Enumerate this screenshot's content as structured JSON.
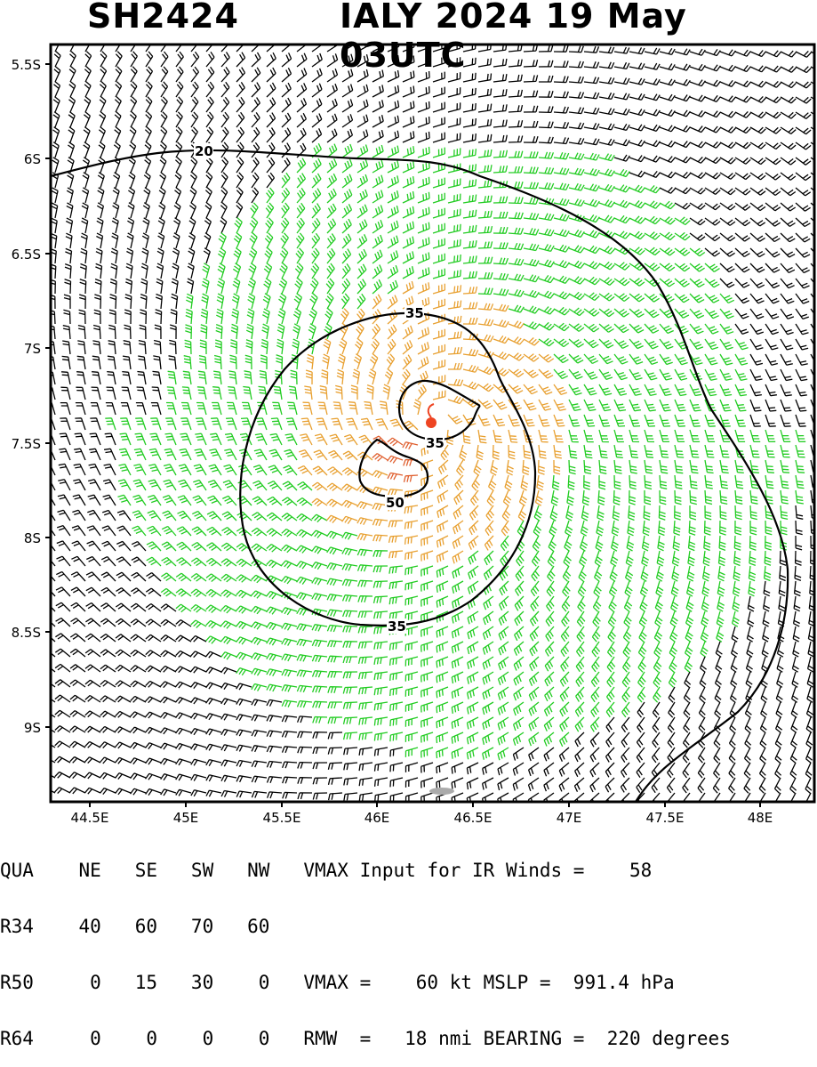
{
  "header": {
    "storm_id": "SH2424",
    "title": "IALY 2024 19 May 03UTC"
  },
  "map": {
    "lon_labels": [
      "44.5E",
      "45E",
      "45.5E",
      "46E",
      "46.5E",
      "47E",
      "47.5E",
      "48E"
    ],
    "lat_labels": [
      "5.5S",
      "6S",
      "6.5S",
      "7S",
      "7.5S",
      "8S",
      "8.5S",
      "9S"
    ],
    "contour_labels": {
      "c20": "20",
      "c35_top": "35",
      "c35_inner": "35",
      "c35_bottom": "35",
      "c50": "50"
    },
    "colors": {
      "barbs_low": "#000000",
      "barbs_gale": "#22cc22",
      "barbs_storm": "#e8a030",
      "barbs_core": "#e06030",
      "center_marker": "#ee4422",
      "contour": "#000000"
    },
    "storm_center": {
      "lon": 46.27,
      "lat": -7.4
    }
  },
  "table": {
    "row_qua": "QUA    NE   SE   SW   NW   VMAX Input for IR Winds =    58",
    "row_r34": "R34    40   60   70   60",
    "row_r50": "R50     0   15   30    0   VMAX =    60 kt MSLP =  991.4 hPa",
    "row_r64": "R64     0    0    0    0   RMW  =   18 nmi BEARING =  220 degrees"
  }
}
